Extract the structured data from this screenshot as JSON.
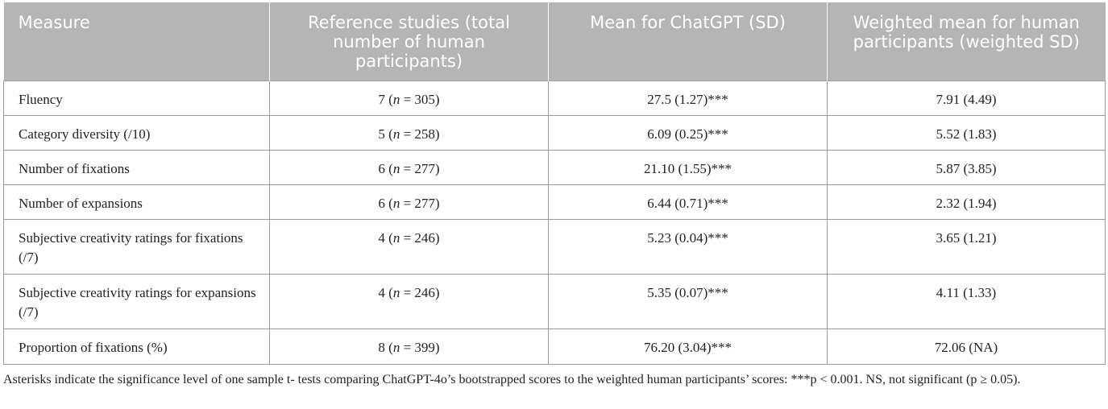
{
  "headers": [
    "Measure",
    "Reference studies (total number of human participants)",
    "Mean for ChatGPT (SD)",
    "Weighted mean for human participants (weighted SD)"
  ],
  "rows": [
    {
      "measure": "Fluency",
      "ref": "7 (",
      "n": "n",
      "ref_tail": " = 305)",
      "gpt": "27.5 (1.27)***",
      "human": "7.91 (4.49)"
    },
    {
      "measure": "Category diversity (/10)",
      "ref": "5 (",
      "n": "n",
      "ref_tail": " = 258)",
      "gpt": "6.09 (0.25)***",
      "human": "5.52 (1.83)"
    },
    {
      "measure": "Number of fixations",
      "ref": "6 (",
      "n": "n",
      "ref_tail": " = 277)",
      "gpt": "21.10 (1.55)***",
      "human": "5.87 (3.85)"
    },
    {
      "measure": "Number of expansions",
      "ref": "6 (",
      "n": "n",
      "ref_tail": " = 277)",
      "gpt": "6.44 (0.71)***",
      "human": "2.32 (1.94)"
    },
    {
      "measure": "Subjective creativity ratings for fixations (/7)",
      "ref": "4 (",
      "n": "n",
      "ref_tail": " = 246)",
      "gpt": "5.23 (0.04)***",
      "human": "3.65 (1.21)"
    },
    {
      "measure": "Subjective creativity ratings for expansions (/7)",
      "ref": "4 (",
      "n": "n",
      "ref_tail": " = 246)",
      "gpt": "5.35 (0.07)***",
      "human": "4.11 (1.33)"
    },
    {
      "measure": "Proportion of fixations (%)",
      "ref": "8 (",
      "n": "n",
      "ref_tail": " = 399)",
      "gpt": "76.20 (3.04)***",
      "human": "72.06 (NA)"
    }
  ],
  "footnote": "Asterisks indicate the significance level of one sample t- tests comparing ChatGPT-4o’s bootstrapped scores to the weighted human participants’ scores: ***p < 0.001. NS, not significant (p ≥ 0.05)."
}
